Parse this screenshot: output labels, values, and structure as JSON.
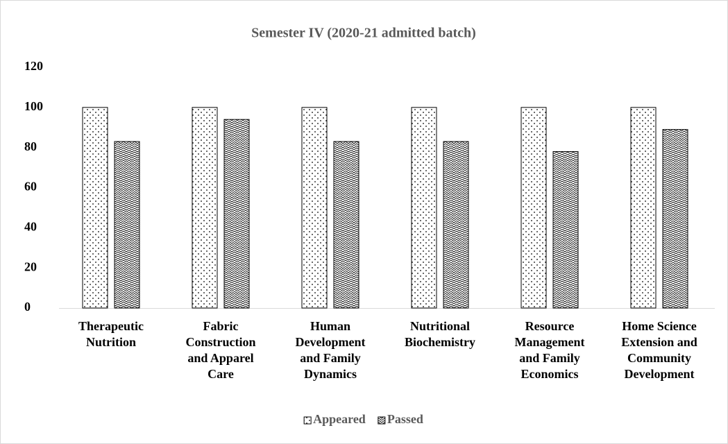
{
  "chart_data": {
    "type": "bar",
    "title": "Semester IV (2020-21 admitted batch)",
    "categories": [
      "Therapeutic Nutrition",
      "Fabric Construction and Apparel Care",
      "Human Development and Family Dynamics",
      "Nutritional Biochemistry",
      "Resource Management and Family Economics",
      "Home Science Extension and Community Development"
    ],
    "series": [
      {
        "name": "Appeared",
        "color": "#000000",
        "pattern": "dots",
        "values": [
          100,
          100,
          100,
          100,
          100,
          100
        ]
      },
      {
        "name": "Passed",
        "color": "#000000",
        "pattern": "waves",
        "values": [
          83,
          94,
          83,
          83,
          78,
          89
        ]
      }
    ],
    "ylim": [
      0,
      120
    ],
    "yticks": [
      0,
      20,
      40,
      60,
      80,
      100,
      120
    ],
    "legend": "bottom"
  }
}
